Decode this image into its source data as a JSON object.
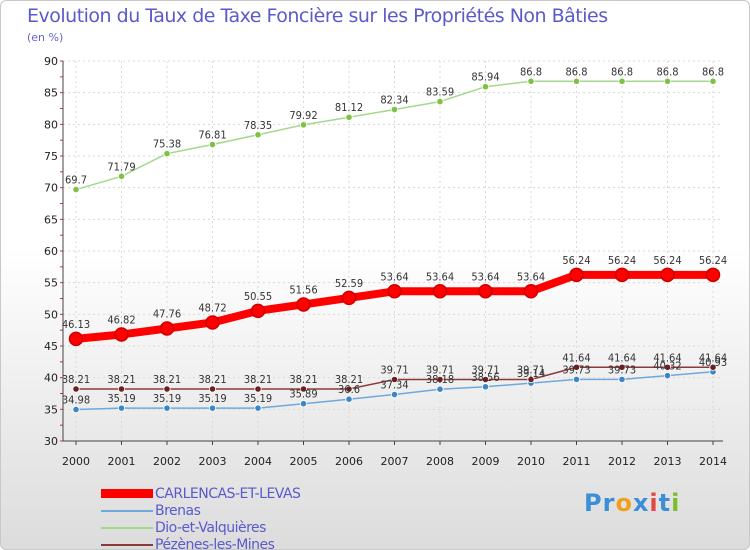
{
  "title": "Evolution du Taux de Taxe Foncière sur les Propriétés Non Bâties",
  "subtitle": "(en %)",
  "logo": {
    "text": "Proxiti",
    "letters": [
      "P",
      "r",
      "o",
      "x",
      "i",
      "t",
      "i"
    ],
    "colors": [
      "#3b8fd6",
      "#3b8fd6",
      "#f0a020",
      "#3b8fd6",
      "#e04848",
      "#3b8fd6",
      "#7bbf2a"
    ]
  },
  "chart_data": {
    "type": "line",
    "title": "Evolution du Taux de Taxe Foncière sur les Propriétés Non Bâties",
    "ylabel": "(en %)",
    "xlabel": "",
    "ylim": [
      30,
      90
    ],
    "yticks": [
      30,
      35,
      40,
      45,
      50,
      55,
      60,
      65,
      70,
      75,
      80,
      85,
      90
    ],
    "x": [
      2000,
      2001,
      2002,
      2003,
      2004,
      2005,
      2006,
      2007,
      2008,
      2009,
      2010,
      2011,
      2012,
      2013,
      2014
    ],
    "series": [
      {
        "name": "CARLENCAS-ET-LEVAS",
        "color": "#ff0000",
        "marker": "#cc0000",
        "width": 8,
        "values": [
          46.13,
          46.82,
          47.76,
          48.72,
          50.55,
          51.56,
          52.59,
          53.64,
          53.64,
          53.64,
          53.64,
          56.24,
          56.24,
          56.24,
          56.24
        ],
        "labels": [
          "46.13",
          "46.82",
          "47.76",
          "48.72",
          "50.55",
          "51.56",
          "52.59",
          "53.64",
          "53.64",
          "53.64",
          "53.64",
          "56.24",
          "56.24",
          "56.24",
          "56.24"
        ]
      },
      {
        "name": "Brenas",
        "color": "#6fa8dc",
        "marker": "#3d85c6",
        "width": 1.5,
        "values": [
          34.98,
          35.19,
          35.19,
          35.19,
          35.19,
          35.89,
          36.6,
          37.34,
          38.18,
          38.56,
          39.14,
          39.73,
          39.73,
          40.32,
          40.93
        ],
        "labels": [
          "34.98",
          "35.19",
          "35.19",
          "35.19",
          "35.19",
          "35.89",
          "36.6",
          "37.34",
          "38.18",
          "38.56",
          "39.14",
          "39.73",
          "39.73",
          "40.32",
          "40.93"
        ]
      },
      {
        "name": "Dio-et-Valquières",
        "color": "#a4d88c",
        "marker": "#7dc242",
        "width": 1.5,
        "values": [
          69.7,
          71.79,
          75.38,
          76.81,
          78.35,
          79.92,
          81.12,
          82.34,
          83.59,
          85.94,
          86.8,
          86.8,
          86.8,
          86.8,
          86.8
        ],
        "labels": [
          "69.7",
          "71.79",
          "75.38",
          "76.81",
          "78.35",
          "79.92",
          "81.12",
          "82.34",
          "83.59",
          "85.94",
          "86.8",
          "86.8",
          "86.8",
          "86.8",
          "86.8"
        ]
      },
      {
        "name": "Pézènes-les-Mines",
        "color": "#8b3a3a",
        "marker": "#6b1f1f",
        "width": 1.5,
        "values": [
          38.21,
          38.21,
          38.21,
          38.21,
          38.21,
          38.21,
          38.21,
          39.71,
          39.71,
          39.71,
          39.71,
          41.64,
          41.64,
          41.64,
          41.64
        ],
        "labels": [
          "38.21",
          "38.21",
          "38.21",
          "38.21",
          "38.21",
          "38.21",
          "38.21",
          "39.71",
          "39.71",
          "39.71",
          "39.71",
          "41.64",
          "41.64",
          "41.64",
          "41.64"
        ]
      }
    ]
  }
}
